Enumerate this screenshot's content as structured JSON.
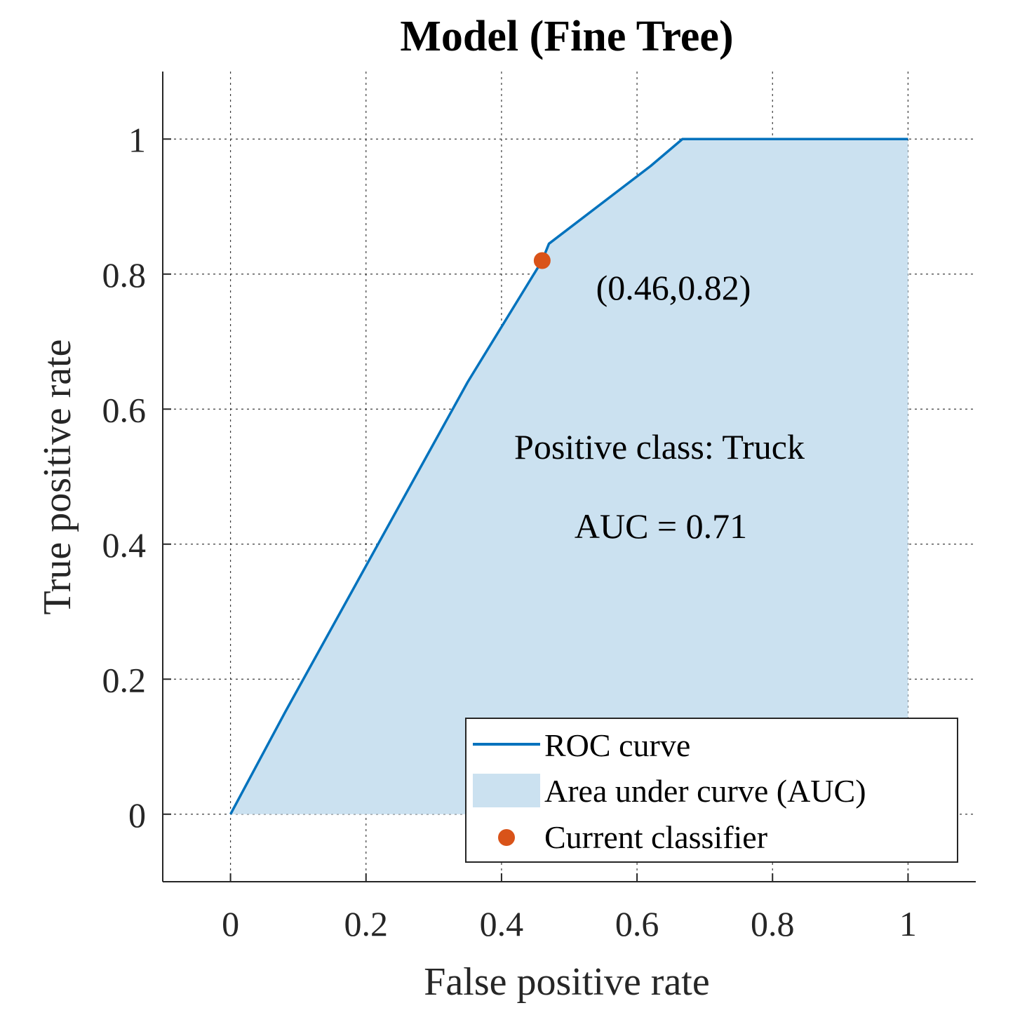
{
  "chart_data": {
    "type": "area",
    "title": "Model (Fine Tree)",
    "xlabel": "False positive rate",
    "ylabel": "True positive rate",
    "xlim": [
      -0.1,
      1.1
    ],
    "ylim": [
      -0.1,
      1.1
    ],
    "xticks": [
      0,
      0.2,
      0.4,
      0.6,
      0.8,
      1
    ],
    "yticks": [
      0,
      0.2,
      0.4,
      0.6,
      0.8,
      1
    ],
    "xtick_labels": [
      "0",
      "0.2",
      "0.4",
      "0.6",
      "0.8",
      "1"
    ],
    "ytick_labels": [
      "0",
      "0.2",
      "0.4",
      "0.6",
      "0.8",
      "1"
    ],
    "grid": true,
    "series": [
      {
        "name": "ROC curve",
        "type": "line",
        "x": [
          0,
          0.08,
          0.35,
          0.46,
          0.47,
          0.62,
          0.667,
          1.0
        ],
        "y": [
          0,
          0.15,
          0.64,
          0.82,
          0.845,
          0.96,
          1.0,
          1.0
        ],
        "color": "#0072BD"
      },
      {
        "name": "Area under curve (AUC)",
        "type": "area",
        "color": "#CBE1F0"
      },
      {
        "name": "Current classifier",
        "type": "scatter",
        "x": [
          0.46
        ],
        "y": [
          0.82
        ],
        "color": "#D95319"
      }
    ],
    "annotations": [
      {
        "text": "(0.46,0.82)",
        "x": 0.65,
        "y": 0.78
      },
      {
        "text": "Positive class: Truck",
        "x": 0.64,
        "y": 0.54
      },
      {
        "text": "AUC = 0.71",
        "x": 0.64,
        "y": 0.41
      }
    ],
    "legend": {
      "position": "bottom-right",
      "entries": [
        "ROC curve",
        "Area under curve (AUC)",
        "Current classifier"
      ]
    }
  }
}
